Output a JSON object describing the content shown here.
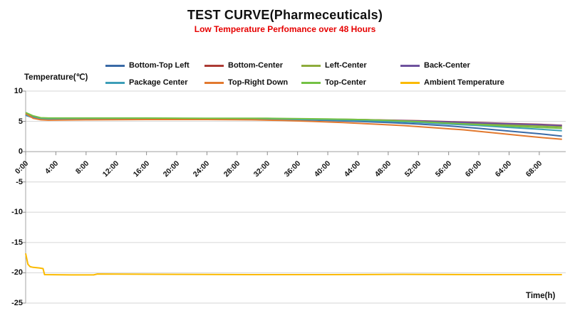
{
  "chart_data": {
    "type": "line",
    "title": "TEST CURVE(Pharmeceuticals)",
    "subtitle": "Low Temperature Perfomance over 48 Hours",
    "subtitle_color": "#e60000",
    "y_axis_label": "Temperature(℃)",
    "x_axis_label": "Time(h)",
    "xlim": [
      0,
      71.5
    ],
    "ylim": [
      -25,
      10
    ],
    "y_ticks": [
      10,
      5,
      0,
      -5,
      -10,
      -15,
      -20,
      -25
    ],
    "x_ticks": [
      "0:00",
      "4:00",
      "8:00",
      "12:00",
      "16:00",
      "20:00",
      "24:00",
      "28:00",
      "32:00",
      "36:00",
      "40:00",
      "44:00",
      "48:00",
      "52:00",
      "56:00",
      "60:00",
      "64:00",
      "68:00"
    ],
    "x_tick_interval_hours": 4,
    "legend_position": "top",
    "grid": "horizontal",
    "series": [
      {
        "name": "Bottom-Top Left",
        "color": "#3a6aa6",
        "points": [
          [
            0,
            6.0
          ],
          [
            1,
            5.6
          ],
          [
            2,
            5.35
          ],
          [
            3,
            5.3
          ],
          [
            6,
            5.3
          ],
          [
            12,
            5.35
          ],
          [
            20,
            5.35
          ],
          [
            28,
            5.3
          ],
          [
            36,
            5.25
          ],
          [
            40,
            5.15
          ],
          [
            44,
            5.0
          ],
          [
            48,
            4.8
          ],
          [
            52,
            4.55
          ],
          [
            56,
            4.25
          ],
          [
            60,
            3.85
          ],
          [
            64,
            3.4
          ],
          [
            68,
            2.95
          ],
          [
            71,
            2.55
          ]
        ]
      },
      {
        "name": "Bottom-Center",
        "color": "#ac3b34",
        "points": [
          [
            0,
            6.2
          ],
          [
            1,
            5.7
          ],
          [
            2,
            5.5
          ],
          [
            3,
            5.45
          ],
          [
            8,
            5.45
          ],
          [
            16,
            5.45
          ],
          [
            24,
            5.45
          ],
          [
            32,
            5.4
          ],
          [
            40,
            5.35
          ],
          [
            44,
            5.3
          ],
          [
            48,
            5.2
          ],
          [
            52,
            5.1
          ],
          [
            56,
            4.95
          ],
          [
            60,
            4.8
          ],
          [
            64,
            4.65
          ],
          [
            68,
            4.5
          ],
          [
            71,
            4.35
          ]
        ]
      },
      {
        "name": "Left-Center",
        "color": "#8eac3c",
        "points": [
          [
            0,
            6.35
          ],
          [
            1,
            5.8
          ],
          [
            2,
            5.55
          ],
          [
            3,
            5.5
          ],
          [
            8,
            5.5
          ],
          [
            16,
            5.5
          ],
          [
            24,
            5.45
          ],
          [
            32,
            5.45
          ],
          [
            40,
            5.35
          ],
          [
            44,
            5.3
          ],
          [
            48,
            5.15
          ],
          [
            52,
            5.0
          ],
          [
            56,
            4.8
          ],
          [
            60,
            4.6
          ],
          [
            64,
            4.4
          ],
          [
            68,
            4.25
          ],
          [
            71,
            4.1
          ]
        ]
      },
      {
        "name": "Back-Center",
        "color": "#6f529e",
        "points": [
          [
            0,
            6.1
          ],
          [
            1,
            5.65
          ],
          [
            2,
            5.45
          ],
          [
            3,
            5.4
          ],
          [
            8,
            5.4
          ],
          [
            16,
            5.4
          ],
          [
            24,
            5.4
          ],
          [
            32,
            5.4
          ],
          [
            40,
            5.3
          ],
          [
            44,
            5.25
          ],
          [
            48,
            5.15
          ],
          [
            52,
            5.05
          ],
          [
            56,
            4.9
          ],
          [
            60,
            4.75
          ],
          [
            64,
            4.6
          ],
          [
            68,
            4.45
          ],
          [
            71,
            4.3
          ]
        ]
      },
      {
        "name": "Package Center",
        "color": "#3d9eb8",
        "points": [
          [
            0,
            6.05
          ],
          [
            1,
            5.6
          ],
          [
            2,
            5.4
          ],
          [
            3,
            5.35
          ],
          [
            8,
            5.35
          ],
          [
            16,
            5.4
          ],
          [
            24,
            5.4
          ],
          [
            32,
            5.35
          ],
          [
            40,
            5.25
          ],
          [
            44,
            5.15
          ],
          [
            48,
            5.0
          ],
          [
            52,
            4.8
          ],
          [
            56,
            4.55
          ],
          [
            60,
            4.3
          ],
          [
            64,
            4.0
          ],
          [
            68,
            3.7
          ],
          [
            71,
            3.45
          ]
        ]
      },
      {
        "name": "Top-Right Down",
        "color": "#e2792f",
        "points": [
          [
            0,
            6.3
          ],
          [
            1,
            5.5
          ],
          [
            2,
            5.25
          ],
          [
            3,
            5.2
          ],
          [
            8,
            5.25
          ],
          [
            16,
            5.3
          ],
          [
            24,
            5.3
          ],
          [
            30,
            5.25
          ],
          [
            34,
            5.15
          ],
          [
            38,
            5.0
          ],
          [
            42,
            4.8
          ],
          [
            46,
            4.55
          ],
          [
            50,
            4.3
          ],
          [
            54,
            3.95
          ],
          [
            58,
            3.6
          ],
          [
            62,
            3.1
          ],
          [
            66,
            2.6
          ],
          [
            69,
            2.25
          ],
          [
            71,
            2.05
          ]
        ]
      },
      {
        "name": "Top-Center",
        "color": "#74c144",
        "points": [
          [
            0,
            6.45
          ],
          [
            1,
            5.9
          ],
          [
            2,
            5.6
          ],
          [
            3,
            5.55
          ],
          [
            8,
            5.55
          ],
          [
            16,
            5.55
          ],
          [
            24,
            5.5
          ],
          [
            32,
            5.5
          ],
          [
            40,
            5.4
          ],
          [
            44,
            5.3
          ],
          [
            48,
            5.15
          ],
          [
            52,
            4.95
          ],
          [
            56,
            4.7
          ],
          [
            60,
            4.45
          ],
          [
            64,
            4.2
          ],
          [
            68,
            4.0
          ],
          [
            71,
            3.85
          ]
        ]
      },
      {
        "name": "Ambient Temperature",
        "color": "#fbba00",
        "points": [
          [
            0,
            -16.8
          ],
          [
            0.3,
            -18.6
          ],
          [
            0.6,
            -19.0
          ],
          [
            1,
            -19.1
          ],
          [
            1.8,
            -19.2
          ],
          [
            2.3,
            -19.3
          ],
          [
            2.5,
            -20.3
          ],
          [
            6,
            -20.35
          ],
          [
            9,
            -20.35
          ],
          [
            9.5,
            -20.2
          ],
          [
            20,
            -20.25
          ],
          [
            30,
            -20.3
          ],
          [
            40,
            -20.3
          ],
          [
            50,
            -20.25
          ],
          [
            60,
            -20.3
          ],
          [
            71,
            -20.3
          ]
        ]
      }
    ]
  }
}
